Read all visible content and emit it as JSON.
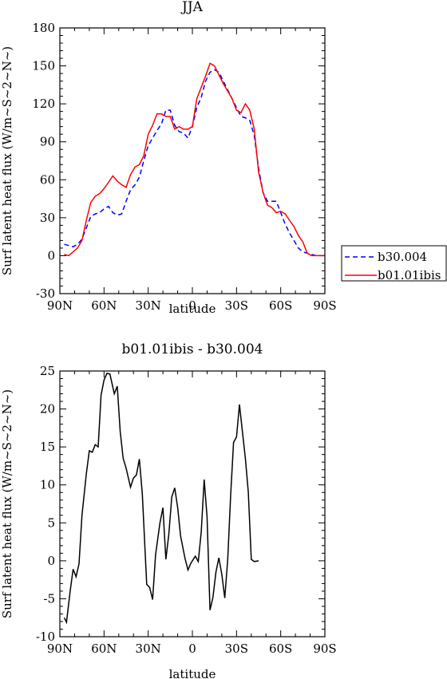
{
  "chart_data": [
    {
      "type": "line",
      "title": "JJA",
      "xlabel": "latitude",
      "ylabel": "Surf latent heat flux (W/m~S~2~N~)",
      "x_tick_labels": [
        "90N",
        "60N",
        "30N",
        "0",
        "30S",
        "60S",
        "90S"
      ],
      "x_tick_values": [
        -90,
        -60,
        -30,
        0,
        30,
        60,
        90
      ],
      "y_tick_labels": [
        "-30",
        "0",
        "30",
        "60",
        "90",
        "120",
        "150",
        "180"
      ],
      "y_tick_values": [
        -30,
        0,
        30,
        60,
        90,
        120,
        150,
        180
      ],
      "xlim": [
        -90,
        90
      ],
      "ylim": [
        -30,
        180
      ],
      "legend_position": "right",
      "series": [
        {
          "name": "b30.004",
          "color": "#0000ff",
          "dash": "dashed",
          "points": [
            [
              -87,
              9
            ],
            [
              -84,
              8
            ],
            [
              -81,
              7
            ],
            [
              -78,
              9
            ],
            [
              -75,
              13
            ],
            [
              -72,
              22
            ],
            [
              -69,
              31
            ],
            [
              -66,
              33
            ],
            [
              -63,
              34
            ],
            [
              -60,
              37
            ],
            [
              -57,
              39
            ],
            [
              -54,
              34
            ],
            [
              -51,
              32
            ],
            [
              -48,
              33
            ],
            [
              -45,
              43
            ],
            [
              -42,
              52
            ],
            [
              -39,
              56
            ],
            [
              -36,
              62
            ],
            [
              -33,
              75
            ],
            [
              -30,
              87
            ],
            [
              -27,
              93
            ],
            [
              -24,
              99
            ],
            [
              -21,
              104
            ],
            [
              -18,
              115
            ],
            [
              -15,
              115
            ],
            [
              -12,
              103
            ],
            [
              -9,
              98
            ],
            [
              -6,
              97
            ],
            [
              -3,
              93
            ],
            [
              0,
              102
            ],
            [
              3,
              117
            ],
            [
              6,
              125
            ],
            [
              9,
              138
            ],
            [
              12,
              145
            ],
            [
              15,
              147
            ],
            [
              18,
              145
            ],
            [
              21,
              138
            ],
            [
              24,
              131
            ],
            [
              27,
              124
            ],
            [
              30,
              117
            ],
            [
              33,
              110
            ],
            [
              36,
              109
            ],
            [
              39,
              107
            ],
            [
              42,
              95
            ],
            [
              45,
              69
            ],
            [
              48,
              50
            ],
            [
              51,
              43
            ],
            [
              54,
              43
            ],
            [
              57,
              43
            ],
            [
              60,
              34
            ],
            [
              63,
              25
            ],
            [
              66,
              18
            ],
            [
              69,
              12
            ],
            [
              72,
              6
            ],
            [
              75,
              3
            ],
            [
              78,
              2
            ],
            [
              81,
              1
            ],
            [
              84,
              0
            ],
            [
              87,
              0
            ],
            [
              90,
              0
            ]
          ]
        },
        {
          "name": "b01.01ibis",
          "color": "#ff0000",
          "dash": "solid",
          "points": [
            [
              -87,
              1
            ],
            [
              -84,
              0
            ],
            [
              -81,
              3
            ],
            [
              -78,
              6
            ],
            [
              -75,
              12
            ],
            [
              -72,
              28
            ],
            [
              -69,
              42
            ],
            [
              -66,
              47
            ],
            [
              -63,
              49
            ],
            [
              -60,
              53
            ],
            [
              -57,
              58
            ],
            [
              -54,
              63
            ],
            [
              -51,
              59
            ],
            [
              -48,
              56
            ],
            [
              -45,
              54
            ],
            [
              -42,
              64
            ],
            [
              -39,
              70
            ],
            [
              -36,
              72
            ],
            [
              -33,
              79
            ],
            [
              -30,
              96
            ],
            [
              -27,
              103
            ],
            [
              -24,
              112
            ],
            [
              -21,
              112
            ],
            [
              -18,
              110
            ],
            [
              -15,
              110
            ],
            [
              -12,
              100
            ],
            [
              -9,
              102
            ],
            [
              -6,
              100
            ],
            [
              -3,
              100
            ],
            [
              0,
              102
            ],
            [
              3,
              124
            ],
            [
              6,
              133
            ],
            [
              9,
              142
            ],
            [
              12,
              152
            ],
            [
              15,
              150
            ],
            [
              18,
              143
            ],
            [
              21,
              136
            ],
            [
              24,
              130
            ],
            [
              27,
              124
            ],
            [
              30,
              115
            ],
            [
              33,
              113
            ],
            [
              36,
              120
            ],
            [
              39,
              115
            ],
            [
              42,
              100
            ],
            [
              45,
              66
            ],
            [
              48,
              50
            ],
            [
              51,
              40
            ],
            [
              54,
              38
            ],
            [
              57,
              34
            ],
            [
              60,
              35
            ],
            [
              63,
              33
            ],
            [
              66,
              28
            ],
            [
              69,
              23
            ],
            [
              72,
              16
            ],
            [
              75,
              11
            ],
            [
              78,
              2
            ],
            [
              81,
              0
            ],
            [
              84,
              0
            ],
            [
              87,
              0
            ],
            [
              90,
              0
            ]
          ]
        }
      ]
    },
    {
      "type": "line",
      "title": "b01.01ibis - b30.004",
      "xlabel": "latitude",
      "ylabel": "Surf latent heat flux (W/m~S~2~N~)",
      "x_tick_labels": [
        "90N",
        "60N",
        "30N",
        "0",
        "30S",
        "60S",
        "90S"
      ],
      "x_tick_values": [
        -90,
        -60,
        -30,
        0,
        30,
        60,
        90
      ],
      "y_tick_labels": [
        "-10",
        "-5",
        "0",
        "5",
        "10",
        "15",
        "20",
        "25"
      ],
      "y_tick_values": [
        -10,
        -5,
        0,
        5,
        10,
        15,
        20,
        25
      ],
      "xlim": [
        -90,
        90
      ],
      "ylim": [
        -10,
        25
      ],
      "series": [
        {
          "color": "#000000",
          "dash": "solid",
          "points": [
            [
              -87,
              -7.5
            ],
            [
              -85.5,
              -8.1
            ],
            [
              -83,
              -4
            ],
            [
              -81,
              -1.1
            ],
            [
              -79,
              -2.1
            ],
            [
              -77,
              -0.4
            ],
            [
              -75,
              6
            ],
            [
              -72,
              11.5
            ],
            [
              -70,
              14.5
            ],
            [
              -68,
              14.3
            ],
            [
              -66,
              15.3
            ],
            [
              -64,
              15
            ],
            [
              -62,
              21.8
            ],
            [
              -60,
              23.8
            ],
            [
              -58,
              24.7
            ],
            [
              -56,
              24.6
            ],
            [
              -53,
              22
            ],
            [
              -51,
              23
            ],
            [
              -49,
              17
            ],
            [
              -47,
              13.5
            ],
            [
              -45,
              12.2
            ],
            [
              -42,
              9.7
            ],
            [
              -40,
              10.9
            ],
            [
              -38,
              11.3
            ],
            [
              -36,
              13.4
            ],
            [
              -34,
              8.8
            ],
            [
              -31,
              -3.1
            ],
            [
              -29,
              -3.5
            ],
            [
              -27,
              -5.1
            ],
            [
              -25,
              0.8
            ],
            [
              -22,
              5
            ],
            [
              -20,
              7
            ],
            [
              -18,
              0.2
            ],
            [
              -16,
              3.5
            ],
            [
              -14,
              8.4
            ],
            [
              -12,
              9.6
            ],
            [
              -10,
              7
            ],
            [
              -8,
              3.3
            ],
            [
              -5,
              0.3
            ],
            [
              -3,
              -1.2
            ],
            [
              -1,
              -0.3
            ],
            [
              2,
              0.6
            ],
            [
              4,
              -0.1
            ],
            [
              6,
              3.8
            ],
            [
              8,
              10.7
            ],
            [
              10,
              5.8
            ],
            [
              12,
              -6.5
            ],
            [
              14,
              -4.8
            ],
            [
              16,
              -1.5
            ],
            [
              18,
              0.4
            ],
            [
              20,
              -1.8
            ],
            [
              22,
              -4.9
            ],
            [
              24,
              0.2
            ],
            [
              26,
              8.7
            ],
            [
              28,
              15.6
            ],
            [
              30,
              16.3
            ],
            [
              32,
              20.6
            ],
            [
              34,
              17
            ],
            [
              36,
              13.5
            ],
            [
              38,
              9
            ],
            [
              40,
              0.2
            ],
            [
              42,
              -0.1
            ],
            [
              45,
              0
            ]
          ]
        }
      ]
    }
  ],
  "legend": [
    {
      "label": "b30.004",
      "color": "#0000ff",
      "dash": "dashed"
    },
    {
      "label": "b01.01ibis",
      "color": "#ff0000",
      "dash": "solid"
    }
  ]
}
